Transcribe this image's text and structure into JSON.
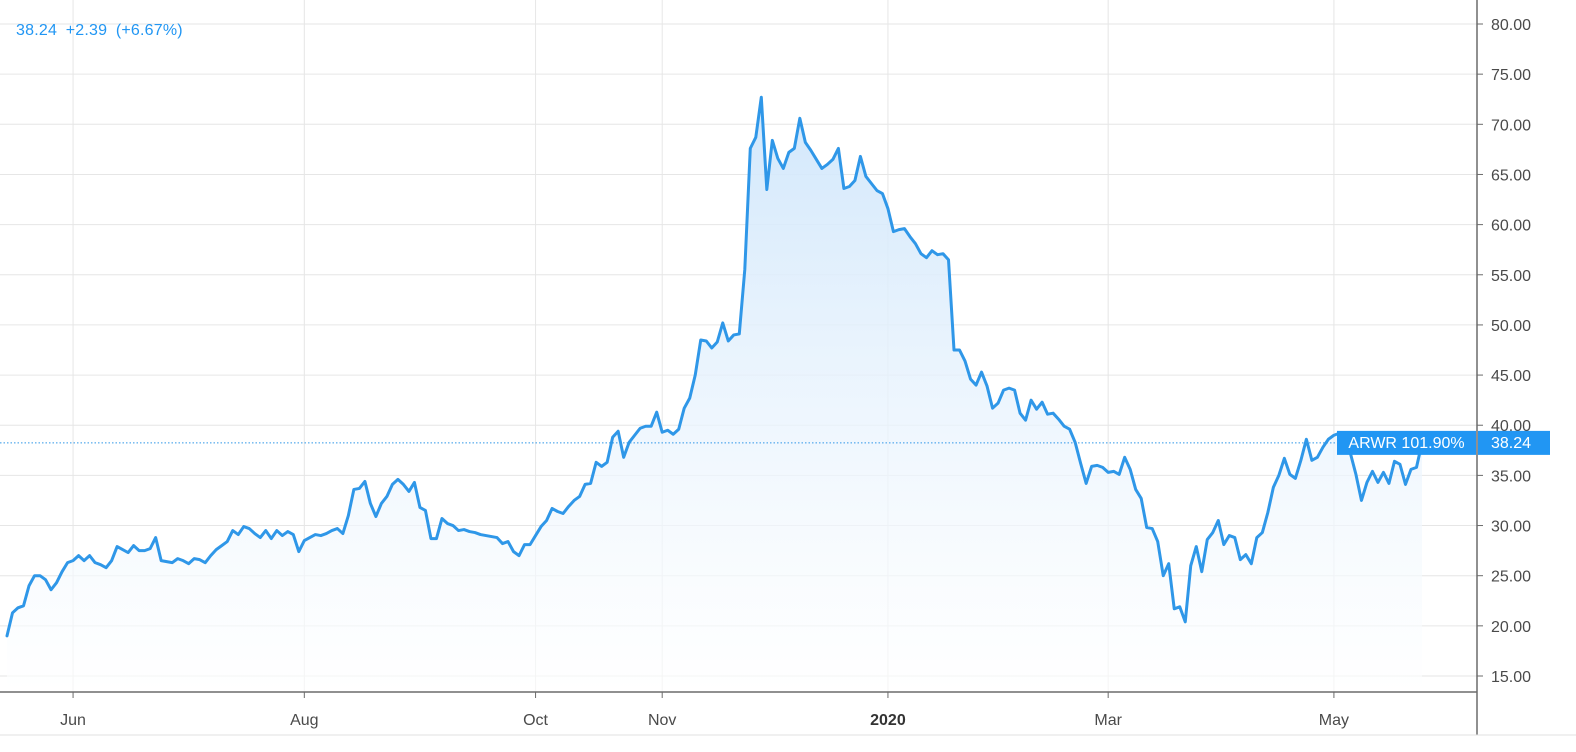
{
  "header": {
    "last_price": "38.24",
    "change": "+2.39",
    "change_pct": "(+6.67%)"
  },
  "price_tag": {
    "symbol_label": "ARWR 101.90%",
    "value_label": "38.24"
  },
  "colors": {
    "line": "#2f97e8",
    "fill_top": "#cfe6fb",
    "fill_bottom": "#ffffff",
    "grid": "#e6e6e6",
    "axis": "#6b6b6b",
    "tag_bg": "#2196f3",
    "tag_text": "#ffffff"
  },
  "chart_data": {
    "type": "area",
    "series": [
      {
        "values": [
          19,
          21.3,
          21.8,
          22,
          24,
          25,
          25,
          24.6,
          23.6,
          24.3,
          25.4,
          26.3,
          26.5,
          27,
          26.5,
          27,
          26.3,
          26.1,
          25.8,
          26.5,
          27.9,
          27.6,
          27.3,
          28,
          27.5,
          27.5,
          27.7,
          28.8,
          26.5,
          26.4,
          26.3,
          26.7,
          26.5,
          26.2,
          26.7,
          26.6,
          26.3,
          27,
          27.6,
          28,
          28.4,
          29.5,
          29.1,
          29.9,
          29.7,
          29.2,
          28.8,
          29.5,
          28.7,
          29.5,
          29,
          29.4,
          29.1,
          27.4,
          28.5,
          28.8,
          29.1,
          29,
          29.2,
          29.5,
          29.7,
          29.2,
          31,
          33.6,
          33.7,
          34.4,
          32.2,
          30.9,
          32.2,
          32.9,
          34.1,
          34.6,
          34.1,
          33.4,
          34.3,
          31.8,
          31.5,
          28.7,
          28.7,
          30.7,
          30.2,
          30,
          29.5,
          29.6,
          29.4,
          29.3,
          29.1,
          29,
          28.9,
          28.8,
          28.2,
          28.4,
          27.4,
          27,
          28.1,
          28.1,
          29,
          29.9,
          30.5,
          31.7,
          31.4,
          31.2,
          31.9,
          32.5,
          32.9,
          34.1,
          34.2,
          36.3,
          35.9,
          36.3,
          38.8,
          39.4,
          36.8,
          38.3,
          39,
          39.7,
          39.9,
          39.9,
          41.3,
          39.3,
          39.5,
          39.1,
          39.6,
          41.7,
          42.7,
          45,
          48.5,
          48.4,
          47.7,
          48.3,
          50.2,
          48.4,
          49,
          49.1,
          55.5,
          67.6,
          68.7,
          72.7,
          63.5,
          68.4,
          66.6,
          65.6,
          67.2,
          67.6,
          70.6,
          68.2,
          67.4,
          66.5,
          65.6,
          66,
          66.5,
          67.6,
          63.6,
          63.8,
          64.4,
          66.8,
          64.8,
          64.1,
          63.4,
          63.1,
          61.6,
          59.3,
          59.5,
          59.6,
          58.8,
          58.1,
          57.1,
          56.7,
          57.4,
          57,
          57.1,
          56.5,
          47.5,
          47.5,
          46.4,
          44.6,
          44,
          45.3,
          43.9,
          41.7,
          42.2,
          43.5,
          43.7,
          43.5,
          41.2,
          40.5,
          42.5,
          41.6,
          42.3,
          41.1,
          41.2,
          40.6,
          39.9,
          39.6,
          38.3,
          36.2,
          34.2,
          35.9,
          36,
          35.8,
          35.3,
          35.4,
          35.1,
          36.8,
          35.6,
          33.6,
          32.7,
          29.8,
          29.7,
          28.4,
          25,
          26.2,
          21.7,
          21.9,
          20.4,
          26,
          27.9,
          25.4,
          28.6,
          29.3,
          30.5,
          28.1,
          29,
          28.8,
          26.6,
          27.1,
          26.2,
          28.8,
          29.3,
          31.3,
          33.8,
          35,
          36.7,
          35.1,
          34.7,
          36.5,
          38.6,
          36.5,
          36.8,
          37.8,
          38.6,
          39,
          39.2,
          38.8,
          37.2,
          35.1,
          32.5,
          34.3,
          35.4,
          34.3,
          35.3,
          34.2,
          36.4,
          36.1,
          34.1,
          35.6,
          35.8,
          38.24
        ]
      }
    ],
    "x_ticks": [
      {
        "label": "Jun",
        "index": 12,
        "bold": false
      },
      {
        "label": "Aug",
        "index": 54,
        "bold": false
      },
      {
        "label": "Oct",
        "index": 96,
        "bold": false
      },
      {
        "label": "Nov",
        "index": 119,
        "bold": false
      },
      {
        "label": "2020",
        "index": 160,
        "bold": true
      },
      {
        "label": "Mar",
        "index": 200,
        "bold": false
      },
      {
        "label": "May",
        "index": 241,
        "bold": false
      }
    ],
    "y_ticks": [
      "15.00",
      "20.00",
      "25.00",
      "30.00",
      "35.00",
      "40.00",
      "45.00",
      "50.00",
      "55.00",
      "60.00",
      "65.00",
      "70.00",
      "75.00",
      "80.00"
    ],
    "ylim": [
      14,
      80.5
    ],
    "last_value": 38.24,
    "grid": true
  }
}
